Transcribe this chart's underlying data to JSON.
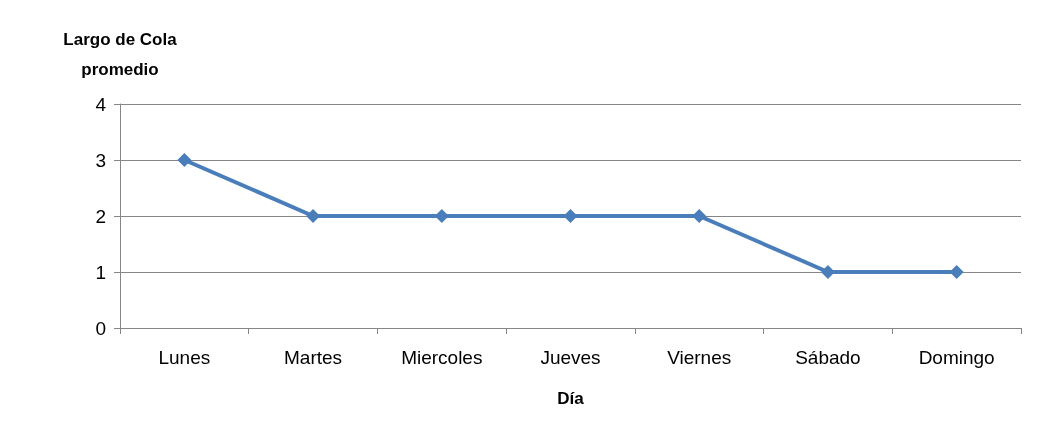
{
  "chart_data": {
    "type": "line",
    "ylabel": "Largo de Cola\npromedio",
    "xlabel": "Día",
    "categories": [
      "Lunes",
      "Martes",
      "Miercoles",
      "Jueves",
      "Viernes",
      "Sábado",
      "Domingo"
    ],
    "series": [
      {
        "color": "#4a7ebb",
        "values": [
          3,
          2,
          2,
          2,
          2,
          1,
          1
        ]
      }
    ],
    "ylim": [
      0,
      4
    ],
    "yticks": [
      0,
      1,
      2,
      3,
      4
    ],
    "grid": "y",
    "marker": "diamond",
    "line_style": "solid"
  }
}
